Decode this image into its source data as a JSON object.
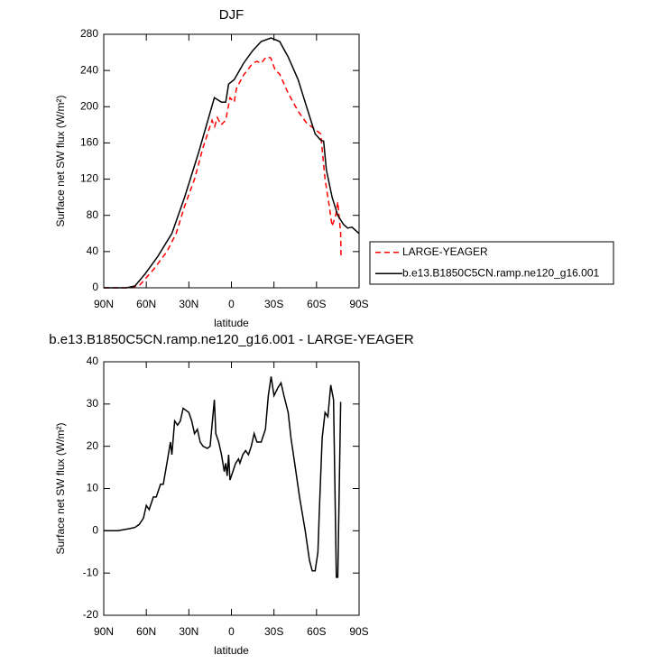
{
  "chart_data": [
    {
      "type": "line",
      "title": "DJF",
      "xlabel": "latitude",
      "ylabel": "Surface net SW flux (W/m²)",
      "xlim": [
        90,
        -90
      ],
      "xticks": [
        {
          "value": 90,
          "label": "90N"
        },
        {
          "value": 60,
          "label": "60N"
        },
        {
          "value": 30,
          "label": "30N"
        },
        0,
        {
          "value": -30,
          "label": "30S"
        },
        {
          "value": -60,
          "label": "60S"
        },
        {
          "value": -90,
          "label": "90S"
        }
      ],
      "ylim": [
        0,
        280
      ],
      "yticks": [
        0,
        40,
        80,
        120,
        160,
        200,
        240,
        280
      ],
      "legend": "right",
      "series": [
        {
          "name": "LARGE-YEAGER",
          "color": "#ff0000",
          "dash": true,
          "x": [
            90,
            71,
            64.6,
            55,
            45.5,
            39,
            33,
            26,
            20,
            13.7,
            11.8,
            9.9,
            7.3,
            4,
            1,
            -2,
            -3.5,
            -8.6,
            -15,
            -18,
            -21,
            -24.5,
            -27.7,
            -31,
            -34,
            -40,
            -47,
            -53,
            -59,
            -63,
            -66,
            -69,
            -71,
            -73.5,
            -75,
            -77,
            -77.3
          ],
          "values": [
            0,
            0,
            3,
            20,
            40,
            60,
            90,
            120,
            155,
            185,
            178,
            188,
            180,
            185,
            210,
            205,
            220,
            235,
            248,
            250,
            248,
            255,
            254,
            240,
            236,
            215,
            195,
            182,
            175,
            170,
            120,
            90,
            68,
            80,
            95,
            60,
            33
          ]
        },
        {
          "name": "b.e13.B1850C5CN.ramp.ne120_g16.001",
          "color": "#000000",
          "dash": false,
          "x": [
            90,
            74,
            68,
            61,
            51.8,
            42,
            33,
            23,
            12,
            7,
            4,
            2,
            -2,
            -8.6,
            -15,
            -21,
            -28,
            -34,
            -40,
            -47,
            -53,
            -59,
            -63,
            -65,
            -67,
            -71,
            -75,
            -79,
            -82,
            -85,
            -90
          ],
          "values": [
            0,
            0,
            2,
            15,
            35,
            60,
            100,
            150,
            210,
            205,
            205,
            225,
            230,
            248,
            262,
            272,
            276,
            272,
            255,
            230,
            200,
            170,
            163,
            162,
            130,
            100,
            80,
            70,
            66,
            67,
            60
          ]
        }
      ]
    },
    {
      "type": "line",
      "title": "b.e13.B1850C5CN.ramp.ne120_g16.001 - LARGE-YEAGER",
      "xlabel": "latitude",
      "ylabel": "Surface net SW flux (W/m²)",
      "xlim": [
        90,
        -90
      ],
      "xticks": [
        {
          "value": 90,
          "label": "90N"
        },
        {
          "value": 60,
          "label": "60N"
        },
        {
          "value": 30,
          "label": "30N"
        },
        0,
        {
          "value": -30,
          "label": "30S"
        },
        {
          "value": -60,
          "label": "60S"
        },
        {
          "value": -90,
          "label": "90S"
        }
      ],
      "ylim": [
        -20,
        40
      ],
      "yticks": [
        -20,
        -10,
        0,
        10,
        20,
        30,
        40
      ],
      "series": [
        {
          "color": "#000000",
          "dash": false,
          "x": [
            90,
            80,
            72,
            68,
            65,
            62,
            60,
            58,
            55,
            53,
            50,
            48,
            45,
            43,
            42,
            40,
            38,
            36,
            34,
            30,
            28,
            26,
            24,
            22,
            20,
            17,
            15,
            12,
            11,
            9,
            7,
            5,
            4,
            3,
            2,
            1,
            -1,
            -3,
            -5,
            -6,
            -8,
            -10,
            -12,
            -14,
            -16,
            -18,
            -21,
            -24,
            -26,
            -28,
            -30,
            -33,
            -35,
            -37,
            -40,
            -42,
            -45,
            -48,
            -52,
            -55,
            -57,
            -59,
            -61,
            -62,
            -64,
            -66,
            -68,
            -70,
            -72,
            -74,
            -75,
            -77
          ],
          "values": [
            0,
            0,
            0.5,
            0.8,
            1.5,
            3,
            6,
            5,
            8,
            8,
            11,
            11,
            17,
            21,
            18,
            26,
            25,
            26,
            29,
            28,
            26,
            23,
            24,
            21,
            20,
            19.5,
            20,
            31,
            23,
            21,
            18,
            14,
            16,
            13,
            18,
            12,
            14,
            16,
            17,
            16,
            18,
            19,
            18,
            20,
            23,
            21,
            21,
            24,
            32,
            36.5,
            32,
            34,
            35,
            32,
            28,
            22,
            15,
            8,
            0,
            -7,
            -9.5,
            -9.5,
            -5,
            5,
            22,
            28,
            27,
            34.5,
            31,
            -11,
            -11,
            30.5
          ]
        }
      ]
    }
  ]
}
